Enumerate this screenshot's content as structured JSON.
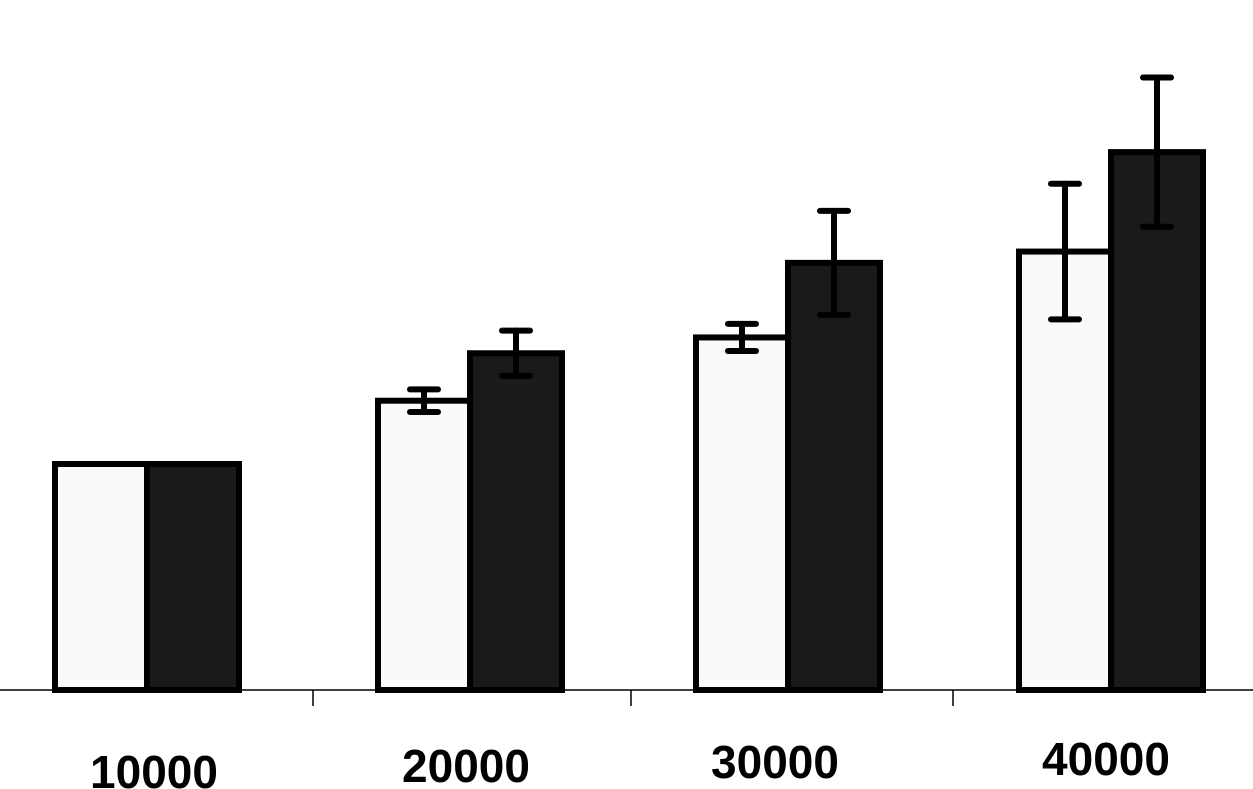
{
  "chart_data": {
    "type": "bar",
    "categories": [
      "10000",
      "20000",
      "30000",
      "40000"
    ],
    "series": [
      {
        "color": "#fafafa",
        "values": [
          1.0,
          1.28,
          1.56,
          1.94
        ],
        "errors": [
          0.0,
          0.05,
          0.06,
          0.3
        ]
      },
      {
        "color": "#1a1a1a",
        "values": [
          1.0,
          1.49,
          1.89,
          2.38
        ],
        "errors": [
          0.0,
          0.1,
          0.23,
          0.33
        ]
      }
    ],
    "title": "",
    "xlabel": "",
    "ylabel": "",
    "ylim": [
      0,
      3.05
    ],
    "grid": false,
    "legend": "none"
  }
}
